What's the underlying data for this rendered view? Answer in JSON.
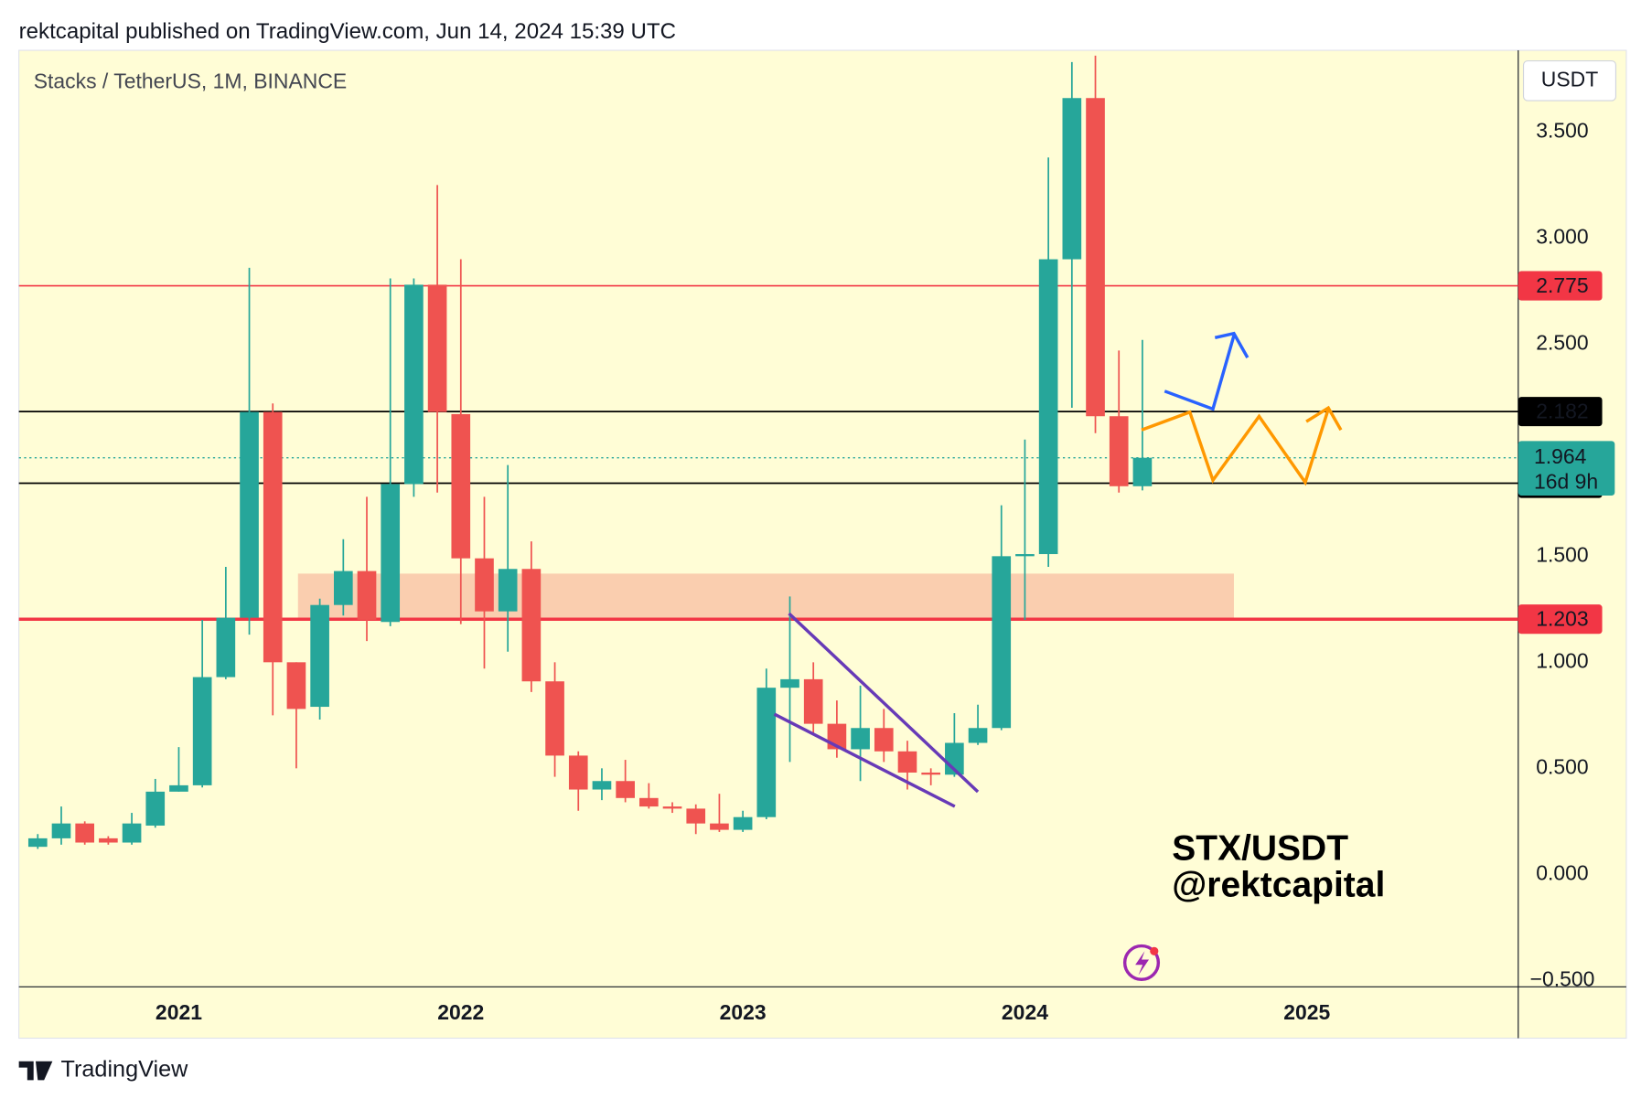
{
  "header": "rektcapital published on TradingView.com, Jun 14, 2024 15:39 UTC",
  "footer": "TradingView",
  "chart_data": {
    "type": "candlestick",
    "title": "Stacks / TetherUS, 1M, BINANCE",
    "currency": "USDT",
    "watermark": [
      "STX/USDT",
      "@rektcapital"
    ],
    "categories": [
      null,
      null,
      null,
      null,
      null,
      null,
      "2021",
      null,
      null,
      null,
      null,
      null,
      null,
      null,
      null,
      null,
      null,
      null,
      "2022",
      null,
      null,
      null,
      null,
      null,
      null,
      null,
      null,
      null,
      null,
      null,
      "2023",
      null,
      null,
      null,
      null,
      null,
      null,
      null,
      null,
      null,
      null,
      null,
      "2024",
      null,
      null,
      null,
      null,
      null
    ],
    "future_xticks": [
      "2025"
    ],
    "up_color": "#26a69a",
    "down_color": "#ef5350",
    "open": [
      0.13,
      0.17,
      0.24,
      0.17,
      0.15,
      0.23,
      0.39,
      0.42,
      0.93,
      1.21,
      2.18,
      1.0,
      0.79,
      1.27,
      1.43,
      1.19,
      1.84,
      2.78,
      2.17,
      1.49,
      1.24,
      1.44,
      0.91,
      0.56,
      0.4,
      0.44,
      0.36,
      0.32,
      0.31,
      0.24,
      0.21,
      0.27,
      0.88,
      0.92,
      0.71,
      0.59,
      0.69,
      0.58,
      0.48,
      0.47,
      0.62,
      0.69,
      1.5,
      1.51,
      2.9,
      3.66,
      2.16,
      1.83
    ],
    "high": [
      0.19,
      0.32,
      0.25,
      0.18,
      0.29,
      0.45,
      0.6,
      1.2,
      1.45,
      2.86,
      2.22,
      1.0,
      1.3,
      1.58,
      1.78,
      2.81,
      2.81,
      3.25,
      2.9,
      1.78,
      1.93,
      1.57,
      1.0,
      0.58,
      0.5,
      0.54,
      0.43,
      0.34,
      0.33,
      0.38,
      0.3,
      0.97,
      1.31,
      1.0,
      0.82,
      0.89,
      0.78,
      0.63,
      0.5,
      0.76,
      0.8,
      1.74,
      2.05,
      3.38,
      3.83,
      3.86,
      2.47,
      2.52
    ],
    "low": [
      0.12,
      0.14,
      0.14,
      0.14,
      0.14,
      0.22,
      0.39,
      0.41,
      0.92,
      1.13,
      0.75,
      0.5,
      0.73,
      1.22,
      1.1,
      1.17,
      1.78,
      1.8,
      1.18,
      0.97,
      1.05,
      0.86,
      0.46,
      0.3,
      0.35,
      0.34,
      0.31,
      0.29,
      0.19,
      0.2,
      0.2,
      0.26,
      0.53,
      0.66,
      0.55,
      0.44,
      0.53,
      0.4,
      0.42,
      0.46,
      0.61,
      0.68,
      1.2,
      1.45,
      2.2,
      2.08,
      1.8,
      1.81
    ],
    "close": [
      0.17,
      0.24,
      0.15,
      0.15,
      0.24,
      0.39,
      0.42,
      0.93,
      1.21,
      2.18,
      1.0,
      0.78,
      1.27,
      1.43,
      1.2,
      1.84,
      2.78,
      2.18,
      1.49,
      1.24,
      1.44,
      0.91,
      0.56,
      0.4,
      0.44,
      0.36,
      0.32,
      0.31,
      0.24,
      0.21,
      0.27,
      0.88,
      0.92,
      0.71,
      0.59,
      0.69,
      0.58,
      0.48,
      0.47,
      0.62,
      0.69,
      1.5,
      1.51,
      2.9,
      3.66,
      2.16,
      1.83,
      1.964
    ],
    "ylim": [
      -0.53,
      3.885
    ],
    "yticks": [
      {
        "value": -0.5,
        "label": "−0.500"
      },
      {
        "value": 0,
        "label": "0.000"
      },
      {
        "value": 0.5,
        "label": "0.500"
      },
      {
        "value": 1,
        "label": "1.000"
      },
      {
        "value": 1.5,
        "label": "1.500"
      },
      {
        "value": 2.5,
        "label": "2.500"
      },
      {
        "value": 3,
        "label": "3.000"
      },
      {
        "value": 3.5,
        "label": "3.500"
      }
    ],
    "levels": [
      {
        "value": 2.775,
        "color": "#f23645",
        "width": 1.5
      },
      {
        "value": 2.182,
        "color": "#000000",
        "width": 1.5
      },
      {
        "value": 1.844,
        "color": "#000000",
        "width": 1.5
      },
      {
        "value": 1.203,
        "color": "#f23645",
        "width": 3
      }
    ],
    "last_price": {
      "value": 1.964,
      "countdown": "16d 9h",
      "color": "#26a69a"
    }
  }
}
